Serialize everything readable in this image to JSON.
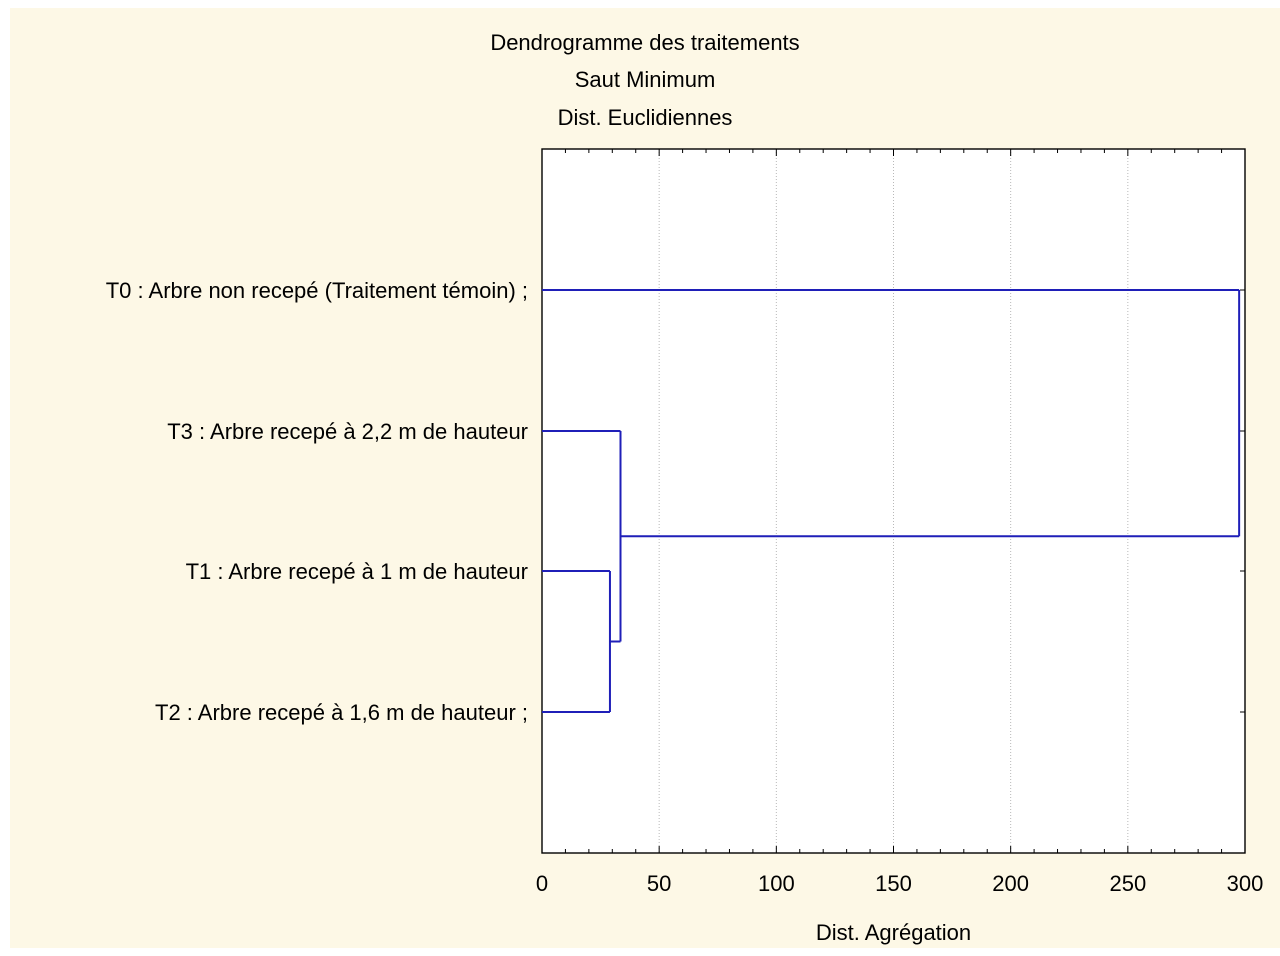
{
  "chart_data": {
    "type": "dendrogram",
    "title": "Dendrogramme des traitements",
    "subtitle_lines": [
      "Saut Minimum",
      "Dist. Euclidiennes"
    ],
    "xlabel": "Dist. Agrégation",
    "xlim": [
      0,
      300
    ],
    "xticks": [
      0,
      50,
      100,
      150,
      200,
      250,
      300
    ],
    "grid_x": true,
    "leaves": [
      "T0 : Arbre non recepé (Traitement témoin) ;",
      "T3 : Arbre recepé à 2,2 m de hauteur",
      "T1 : Arbre recepé à 1 m de hauteur ",
      "T2 : Arbre recepé à 1,6 m de hauteur ;"
    ],
    "merges": [
      {
        "left": 2,
        "right": 3,
        "height": 29
      },
      {
        "left": 1,
        "right": 4,
        "height": 33.5
      },
      {
        "left": 0,
        "right": 5,
        "height": 297.5
      }
    ],
    "line_color": "#1f1fb8"
  }
}
